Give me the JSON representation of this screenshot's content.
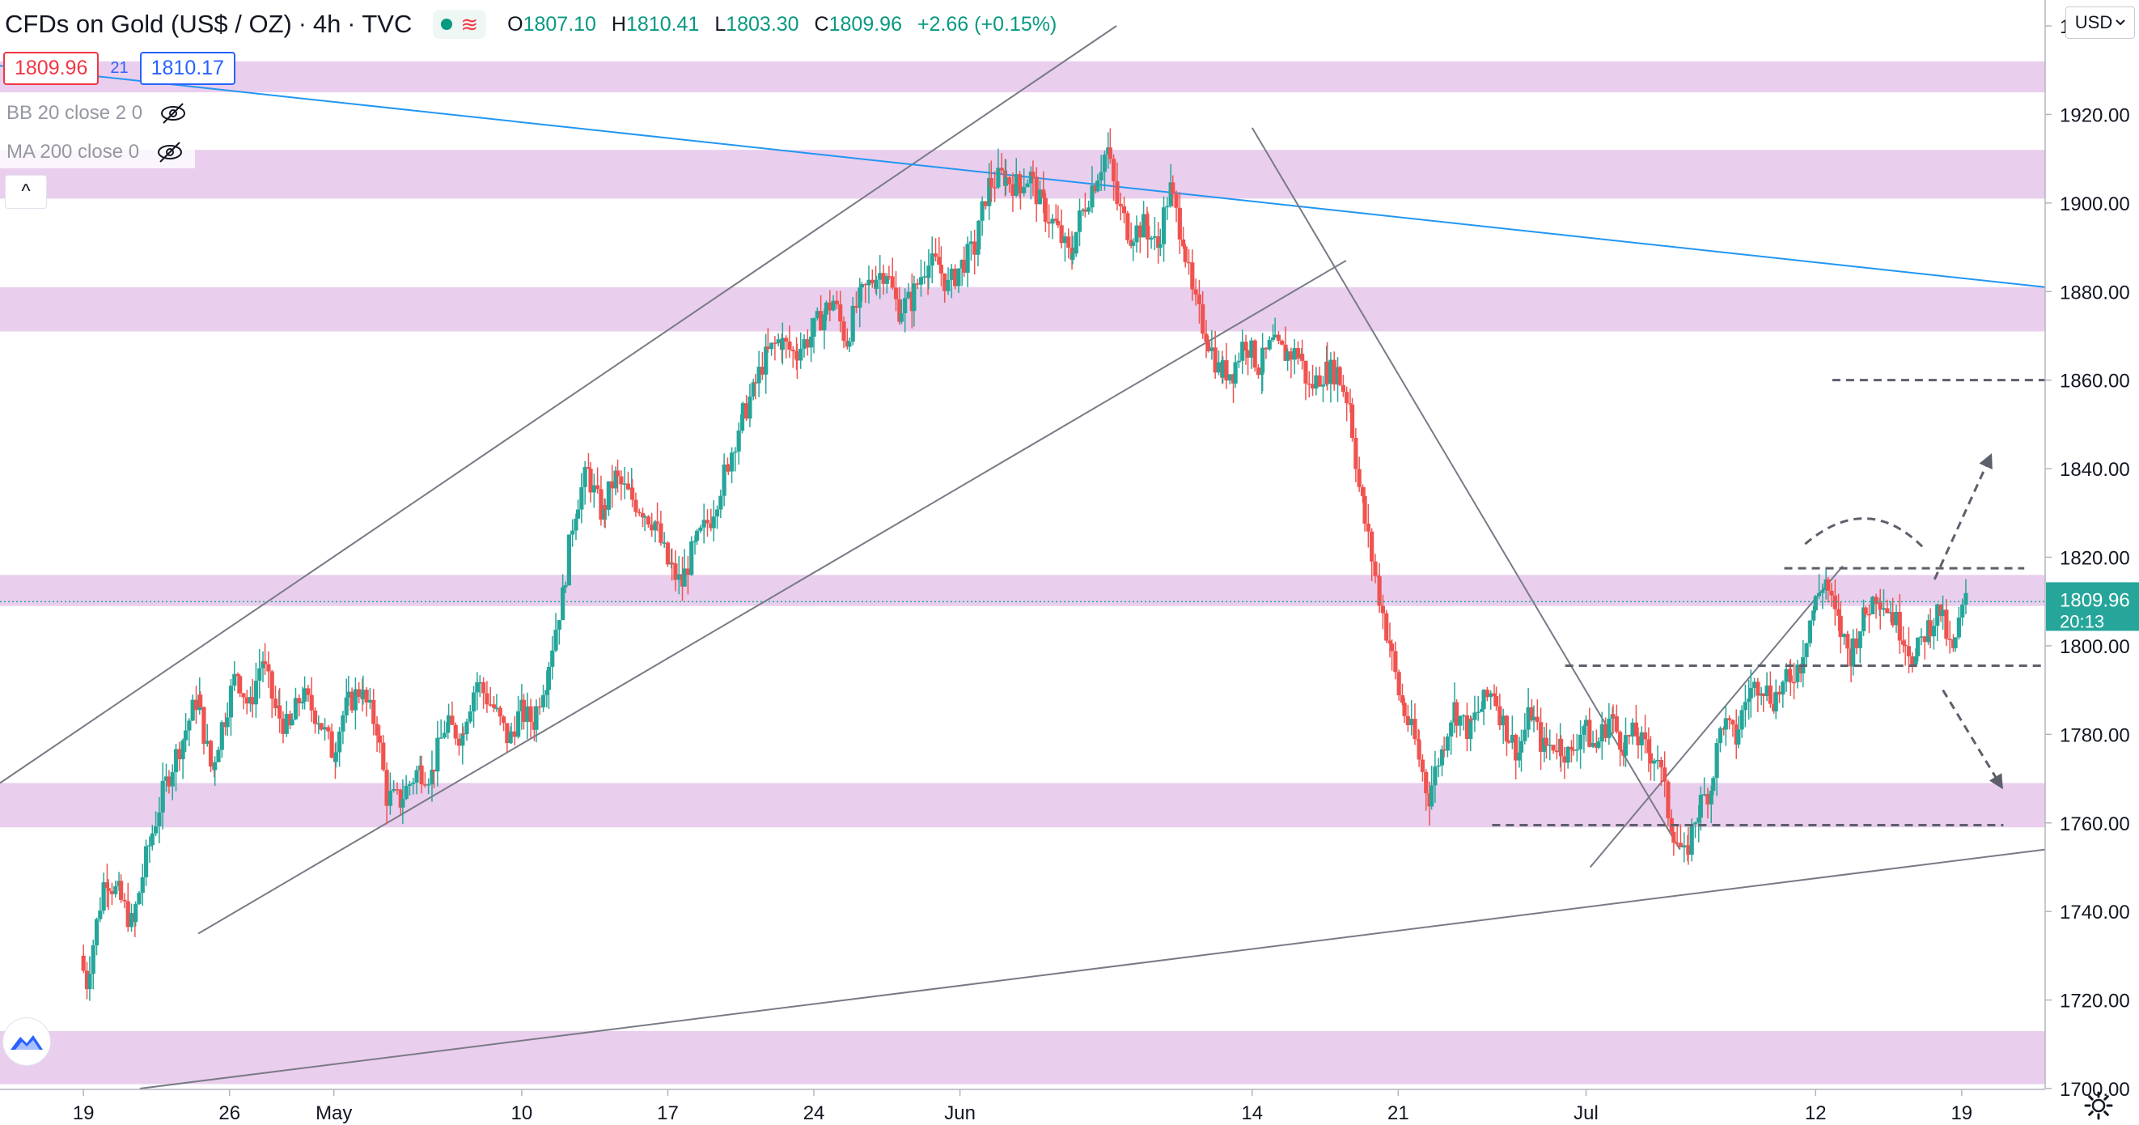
{
  "header": {
    "symbol": "CFDs on Gold (US$ / OZ)",
    "sep1": "·",
    "interval": "4h",
    "sep2": "·",
    "source": "TVC",
    "market_status_icon": "green-dot-icon",
    "wave_icon": "wave-icon",
    "ohlc": {
      "o_label": "O",
      "o_value": "1807.10",
      "h_label": "H",
      "h_value": "1810.41",
      "l_label": "L",
      "l_value": "1803.30",
      "c_label": "C",
      "c_value": "1809.96",
      "change": "+2.66 (+0.15%)"
    }
  },
  "trade": {
    "bid": "1809.96",
    "spread": "21",
    "ask": "1810.17"
  },
  "indicators": [
    {
      "label": "BB 20 close 2 0",
      "icon": "eye-crossed-icon"
    },
    {
      "label": "MA 200 close 0",
      "icon": "eye-crossed-icon"
    }
  ],
  "collapse_glyph": "^",
  "currency": {
    "label": "USD",
    "icon": "chevron-down-icon"
  },
  "last_price": {
    "price": "1809.96",
    "countdown": "20:13"
  },
  "colors": {
    "up": "#26a69a",
    "down": "#ef5350",
    "zone": "#e1bee7",
    "trendline_blue": "#2196f3",
    "channel": "#787b86",
    "last_price_bg": "#26a69a"
  },
  "chart_data": {
    "type": "candlestick",
    "ylim": [
      1700,
      1940
    ],
    "yticks": [
      1940,
      1920,
      1900,
      1880,
      1860,
      1840,
      1820,
      1800,
      1780,
      1760,
      1740,
      1720,
      1700
    ],
    "ytick_labels": [
      "1940.00",
      "1920.00",
      "1900.00",
      "1880.00",
      "1860.00",
      "1840.00",
      "1820.00",
      "1800.00",
      "1780.00",
      "1760.00",
      "1740.00",
      "1720.00",
      "1700.00"
    ],
    "xtick_labels": [
      "19",
      "26",
      "May",
      "10",
      "17",
      "24",
      "Jun",
      "14",
      "21",
      "Jul",
      "12",
      "19"
    ],
    "xtick_days": [
      0,
      7,
      12,
      21,
      28,
      35,
      42,
      56,
      63,
      72,
      83,
      90
    ],
    "xlim_days": [
      -4,
      94
    ],
    "ohlc_path": [
      [
        0,
        1730
      ],
      [
        0.3,
        1724
      ],
      [
        1.2,
        1748
      ],
      [
        1.8,
        1744
      ],
      [
        2.5,
        1737
      ],
      [
        3.3,
        1755
      ],
      [
        4.1,
        1769
      ],
      [
        4.9,
        1779
      ],
      [
        5.6,
        1788
      ],
      [
        6.3,
        1772
      ],
      [
        6.9,
        1784
      ],
      [
        7.5,
        1794
      ],
      [
        8.1,
        1786
      ],
      [
        8.7,
        1797
      ],
      [
        9.4,
        1785
      ],
      [
        10,
        1781
      ],
      [
        10.6,
        1789
      ],
      [
        11.4,
        1784
      ],
      [
        12.1,
        1776
      ],
      [
        12.7,
        1786
      ],
      [
        13.4,
        1790
      ],
      [
        14.2,
        1782
      ],
      [
        14.7,
        1766
      ],
      [
        15.3,
        1765
      ],
      [
        15.8,
        1769
      ],
      [
        16.2,
        1772
      ],
      [
        16.8,
        1771
      ],
      [
        17.5,
        1782
      ],
      [
        18.2,
        1780
      ],
      [
        19,
        1792
      ],
      [
        19.8,
        1786
      ],
      [
        20.5,
        1779
      ],
      [
        21.1,
        1785
      ],
      [
        21.7,
        1783
      ],
      [
        22.3,
        1793
      ],
      [
        23.1,
        1811
      ],
      [
        23.7,
        1831
      ],
      [
        24.3,
        1839
      ],
      [
        25,
        1830
      ],
      [
        25.6,
        1838
      ],
      [
        26.3,
        1834
      ],
      [
        26.9,
        1831
      ],
      [
        27.5,
        1828
      ],
      [
        28.2,
        1818
      ],
      [
        28.8,
        1814
      ],
      [
        29.4,
        1822
      ],
      [
        30.2,
        1829
      ],
      [
        30.9,
        1839
      ],
      [
        31.6,
        1850
      ],
      [
        32.2,
        1857
      ],
      [
        32.8,
        1865
      ],
      [
        33.5,
        1869
      ],
      [
        34.2,
        1866
      ],
      [
        35,
        1870
      ],
      [
        35.6,
        1875
      ],
      [
        36.1,
        1878
      ],
      [
        36.7,
        1869
      ],
      [
        37.3,
        1878
      ],
      [
        38,
        1883
      ],
      [
        38.6,
        1885
      ],
      [
        39.2,
        1876
      ],
      [
        39.8,
        1878
      ],
      [
        40.5,
        1886
      ],
      [
        41.1,
        1886
      ],
      [
        41.6,
        1881
      ],
      [
        42.2,
        1886
      ],
      [
        42.9,
        1890
      ],
      [
        43.5,
        1904
      ],
      [
        44.2,
        1906
      ],
      [
        44.9,
        1904
      ],
      [
        45.5,
        1906
      ],
      [
        46.1,
        1899
      ],
      [
        46.7,
        1895
      ],
      [
        47.4,
        1888
      ],
      [
        48,
        1898
      ],
      [
        48.6,
        1905
      ],
      [
        49.2,
        1912
      ],
      [
        49.7,
        1900
      ],
      [
        50.3,
        1893
      ],
      [
        51,
        1895
      ],
      [
        51.6,
        1890
      ],
      [
        52.2,
        1903
      ],
      [
        52.8,
        1893
      ],
      [
        53.3,
        1879
      ],
      [
        53.9,
        1871
      ],
      [
        54.6,
        1862
      ],
      [
        55.2,
        1862
      ],
      [
        55.8,
        1869
      ],
      [
        56.5,
        1863
      ],
      [
        57.1,
        1868
      ],
      [
        57.7,
        1866
      ],
      [
        58.4,
        1866
      ],
      [
        58.9,
        1858
      ],
      [
        59.6,
        1862
      ],
      [
        60.2,
        1862
      ],
      [
        60.8,
        1855
      ],
      [
        61.4,
        1832
      ],
      [
        62.1,
        1815
      ],
      [
        62.7,
        1801
      ],
      [
        63.3,
        1787
      ],
      [
        64,
        1778
      ],
      [
        64.6,
        1766
      ],
      [
        65.2,
        1776
      ],
      [
        65.8,
        1786
      ],
      [
        66.5,
        1781
      ],
      [
        67.1,
        1786
      ],
      [
        67.7,
        1790
      ],
      [
        68.3,
        1781
      ],
      [
        68.9,
        1776
      ],
      [
        69.5,
        1785
      ],
      [
        70.1,
        1777
      ],
      [
        70.8,
        1778
      ],
      [
        71.4,
        1775
      ],
      [
        72,
        1782
      ],
      [
        72.6,
        1777
      ],
      [
        73.3,
        1784
      ],
      [
        73.9,
        1778
      ],
      [
        74.5,
        1780
      ],
      [
        75.1,
        1776
      ],
      [
        75.6,
        1775
      ],
      [
        76.2,
        1760
      ],
      [
        76.9,
        1752
      ],
      [
        77.5,
        1763
      ],
      [
        78.1,
        1768
      ],
      [
        78.7,
        1783
      ],
      [
        79.3,
        1779
      ],
      [
        79.9,
        1789
      ],
      [
        80.5,
        1792
      ],
      [
        81.1,
        1788
      ],
      [
        81.8,
        1792
      ],
      [
        82.4,
        1796
      ],
      [
        83,
        1808
      ],
      [
        83.6,
        1815
      ],
      [
        84.2,
        1805
      ],
      [
        84.8,
        1798
      ],
      [
        85.4,
        1806
      ],
      [
        86.1,
        1812
      ],
      [
        86.7,
        1808
      ],
      [
        87.3,
        1803
      ],
      [
        87.9,
        1797
      ],
      [
        88.5,
        1804
      ],
      [
        89.1,
        1808
      ],
      [
        89.7,
        1798
      ],
      [
        90.3,
        1809.96
      ]
    ],
    "zones": [
      [
        1925,
        1932
      ],
      [
        1901,
        1912
      ],
      [
        1871,
        1881
      ],
      [
        1809,
        1816
      ],
      [
        1759,
        1769
      ],
      [
        1701,
        1713
      ]
    ],
    "lines": [
      {
        "name": "upper-channel",
        "from": [
          -4,
          1769
        ],
        "to": [
          49.5,
          1940
        ],
        "color": "#787b86"
      },
      {
        "name": "lower-channel",
        "from": [
          5.5,
          1735
        ],
        "to": [
          60.5,
          1887
        ],
        "color": "#787b86"
      },
      {
        "name": "down-trend",
        "from": [
          -4,
          1931
        ],
        "to": [
          94,
          1881
        ],
        "color": "#2196f3"
      },
      {
        "name": "support-line",
        "from": [
          2.7,
          1700
        ],
        "to": [
          94,
          1754
        ],
        "color": "#787b86"
      },
      {
        "name": "fall-line",
        "from": [
          56,
          1917
        ],
        "to": [
          76.5,
          1754
        ],
        "color": "#787b86"
      },
      {
        "name": "rise-line",
        "from": [
          72.2,
          1750
        ],
        "to": [
          84.3,
          1818
        ],
        "color": "#787b86"
      }
    ],
    "dashed_levels": [
      {
        "value": 1860,
        "from": 83.8,
        "to": 94
      },
      {
        "value": 1817.5,
        "from": 81.5,
        "to": 93
      },
      {
        "value": 1795.5,
        "from": 71,
        "to": 94
      },
      {
        "value": 1759.5,
        "from": 67.5,
        "to": 92
      }
    ],
    "arrows": [
      {
        "from": [
          88.7,
          1815
        ],
        "to": [
          91.3,
          1842
        ]
      },
      {
        "from": [
          89.1,
          1790
        ],
        "to": [
          91.8,
          1769
        ]
      }
    ],
    "arc": {
      "from": [
        82.5,
        1823
      ],
      "peak": [
        85.5,
        1829
      ],
      "to": [
        88.2,
        1822
      ]
    },
    "last_price": 1809.96
  }
}
